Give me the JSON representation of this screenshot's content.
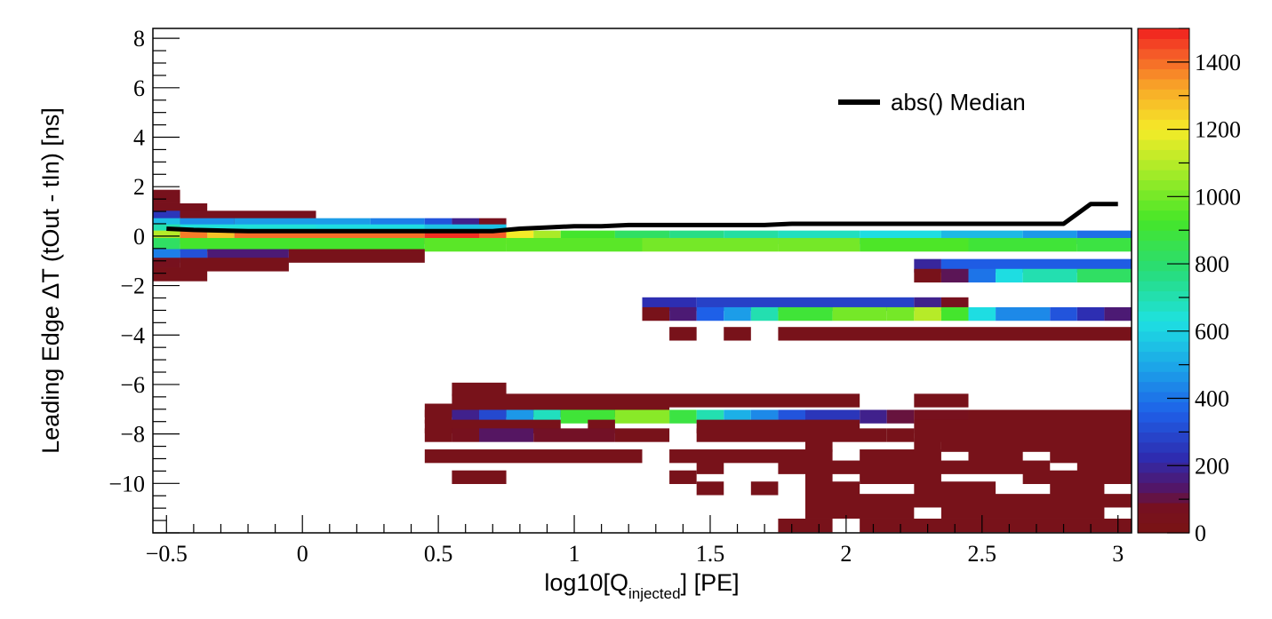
{
  "chart_data": {
    "type": "heatmap",
    "xlabel": {
      "prefix": "log10[Q",
      "subscript": "injected",
      "suffix": "] [PE]"
    },
    "ylabel": "Leading Edge ΔT (tOut - tIn) [ns]",
    "xlim": [
      -0.55,
      3.05
    ],
    "ylim": [
      -12.0,
      8.4
    ],
    "x_ticks": [
      -0.5,
      0,
      0.5,
      1,
      1.5,
      2,
      2.5,
      3
    ],
    "x_tick_labels": [
      "−0.5",
      "0",
      "0.5",
      "1",
      "1.5",
      "2",
      "2.5",
      "3"
    ],
    "y_ticks": [
      8,
      6,
      4,
      2,
      0,
      -2,
      -4,
      -6,
      -8,
      -10
    ],
    "y_tick_labels": [
      "8",
      "6",
      "4",
      "2",
      "0",
      "−2",
      "−4",
      "−6",
      "−8",
      "−10"
    ],
    "colorbar": {
      "min": 0,
      "max": 1500,
      "ticks": [
        0,
        200,
        400,
        600,
        800,
        1000,
        1200,
        1400
      ],
      "tick_labels": [
        "0",
        "200",
        "400",
        "600",
        "800",
        "1000",
        "1200",
        "1400"
      ]
    },
    "x_bin_width": 0.1,
    "y_bin_width": 0.55,
    "rows": [
      {
        "y": 1.6,
        "cells": [
          [
            -0.55,
            -0.45,
            50
          ]
        ]
      },
      {
        "y": 1.05,
        "cells": [
          [
            -0.55,
            -0.35,
            50
          ]
        ]
      },
      {
        "y": 0.75,
        "cells": [
          [
            -0.55,
            -0.45,
            250
          ],
          [
            -0.45,
            0.05,
            60
          ]
        ]
      },
      {
        "y": 0.45,
        "cells": [
          [
            -0.55,
            -0.45,
            550
          ],
          [
            -0.45,
            -0.25,
            450
          ],
          [
            -0.25,
            0.25,
            480
          ],
          [
            0.25,
            0.45,
            420
          ],
          [
            0.45,
            0.55,
            330
          ],
          [
            0.55,
            0.65,
            180
          ],
          [
            0.65,
            0.75,
            60
          ]
        ]
      },
      {
        "y": 0.2,
        "cells": [
          [
            -0.55,
            -0.45,
            700
          ],
          [
            -0.45,
            0.05,
            640
          ],
          [
            0.05,
            0.45,
            620
          ],
          [
            0.45,
            0.75,
            560
          ]
        ]
      },
      {
        "y": -0.05,
        "cells": [
          [
            -0.55,
            -0.45,
            1100
          ],
          [
            -0.45,
            -0.35,
            1380
          ],
          [
            -0.35,
            -0.25,
            1280
          ],
          [
            -0.25,
            0.45,
            1400
          ],
          [
            0.45,
            0.65,
            1480
          ],
          [
            0.65,
            0.75,
            1420
          ],
          [
            0.75,
            0.85,
            1200
          ],
          [
            0.85,
            0.95,
            1080
          ],
          [
            0.95,
            1.15,
            920
          ],
          [
            1.15,
            1.35,
            820
          ],
          [
            1.35,
            1.55,
            760
          ],
          [
            1.55,
            1.75,
            720
          ],
          [
            1.75,
            2.05,
            680
          ],
          [
            2.05,
            2.35,
            620
          ],
          [
            2.35,
            2.65,
            540
          ],
          [
            2.65,
            2.85,
            470
          ],
          [
            2.85,
            3.05,
            390
          ]
        ]
      },
      {
        "y": -0.35,
        "cells": [
          [
            -0.55,
            -0.45,
            820
          ],
          [
            -0.45,
            0.45,
            920
          ],
          [
            0.45,
            0.75,
            960
          ],
          [
            0.75,
            1.25,
            960
          ],
          [
            1.25,
            1.75,
            1000
          ],
          [
            1.75,
            2.05,
            1000
          ],
          [
            2.05,
            2.45,
            940
          ],
          [
            2.45,
            2.85,
            900
          ],
          [
            2.85,
            3.05,
            880
          ]
        ]
      },
      {
        "y": -0.8,
        "cells": [
          [
            -0.55,
            -0.45,
            420
          ],
          [
            -0.45,
            -0.35,
            320
          ],
          [
            -0.35,
            -0.05,
            150
          ],
          [
            -0.05,
            0.45,
            40
          ]
        ]
      },
      {
        "y": -1.15,
        "cells": [
          [
            -0.55,
            -0.45,
            60
          ],
          [
            -0.45,
            -0.05,
            40
          ]
        ]
      },
      {
        "y": -1.55,
        "cells": [
          [
            -0.55,
            -0.35,
            40
          ]
        ]
      },
      {
        "y": -1.2,
        "cells": [
          [
            2.25,
            2.35,
            200
          ],
          [
            2.35,
            3.05,
            350
          ]
        ]
      },
      {
        "y": -1.6,
        "cells": [
          [
            2.25,
            2.35,
            40
          ],
          [
            2.35,
            2.45,
            120
          ],
          [
            2.45,
            2.55,
            400
          ],
          [
            2.55,
            2.65,
            620
          ],
          [
            2.65,
            2.85,
            700
          ],
          [
            2.85,
            3.05,
            820
          ]
        ]
      },
      {
        "y": -2.75,
        "cells": [
          [
            1.25,
            1.45,
            230
          ],
          [
            1.45,
            2.25,
            280
          ],
          [
            2.25,
            2.35,
            180
          ],
          [
            2.35,
            2.45,
            60
          ]
        ]
      },
      {
        "y": -3.15,
        "cells": [
          [
            1.25,
            1.35,
            40
          ],
          [
            1.35,
            1.45,
            150
          ],
          [
            1.45,
            1.55,
            360
          ],
          [
            1.55,
            1.65,
            480
          ],
          [
            1.65,
            1.75,
            700
          ],
          [
            1.75,
            1.95,
            900
          ],
          [
            1.95,
            2.15,
            1000
          ],
          [
            2.15,
            2.25,
            1000
          ],
          [
            2.25,
            2.35,
            1100
          ],
          [
            2.35,
            2.45,
            920
          ],
          [
            2.45,
            2.55,
            620
          ],
          [
            2.55,
            2.75,
            440
          ],
          [
            2.75,
            2.85,
            330
          ],
          [
            2.85,
            2.95,
            230
          ],
          [
            2.95,
            3.05,
            150
          ]
        ]
      },
      {
        "y": -3.95,
        "cells": [
          [
            1.35,
            1.45,
            40
          ],
          [
            1.55,
            1.65,
            40
          ],
          [
            1.75,
            3.05,
            40
          ]
        ]
      },
      {
        "y": -6.2,
        "cells": [
          [
            0.55,
            0.75,
            40
          ]
        ]
      },
      {
        "y": -6.65,
        "cells": [
          [
            0.55,
            2.05,
            40
          ],
          [
            2.25,
            2.45,
            40
          ]
        ]
      },
      {
        "y": -7.05,
        "cells": [
          [
            0.45,
            0.65,
            40
          ],
          [
            0.65,
            1.35,
            40
          ]
        ]
      },
      {
        "y": -7.3,
        "cells": [
          [
            0.45,
            0.55,
            40
          ],
          [
            0.55,
            0.65,
            180
          ],
          [
            0.65,
            0.75,
            300
          ],
          [
            0.75,
            0.85,
            470
          ],
          [
            0.85,
            0.95,
            680
          ],
          [
            0.95,
            1.15,
            900
          ],
          [
            1.15,
            1.35,
            1030
          ],
          [
            1.35,
            1.45,
            880
          ],
          [
            1.45,
            1.55,
            700
          ],
          [
            1.55,
            1.65,
            520
          ],
          [
            1.65,
            1.75,
            440
          ],
          [
            1.75,
            1.85,
            330
          ],
          [
            1.85,
            2.05,
            250
          ],
          [
            2.05,
            2.15,
            180
          ],
          [
            2.15,
            2.25,
            100
          ],
          [
            2.25,
            2.45,
            60
          ],
          [
            2.45,
            3.05,
            40
          ]
        ]
      },
      {
        "y": -7.7,
        "cells": [
          [
            0.45,
            0.95,
            40
          ],
          [
            1.05,
            1.15,
            40
          ],
          [
            1.45,
            2.05,
            40
          ],
          [
            2.25,
            3.05,
            40
          ]
        ]
      },
      {
        "y": -8.05,
        "cells": [
          [
            0.45,
            0.55,
            40
          ],
          [
            0.55,
            0.65,
            60
          ],
          [
            0.65,
            0.85,
            130
          ],
          [
            0.85,
            1.15,
            80
          ],
          [
            1.15,
            1.35,
            40
          ],
          [
            1.45,
            2.15,
            40
          ],
          [
            2.15,
            2.25,
            40
          ],
          [
            2.25,
            3.05,
            40
          ]
        ]
      },
      {
        "y": -8.45,
        "cells": [
          [
            1.85,
            1.95,
            40
          ],
          [
            2.25,
            2.35,
            40
          ],
          [
            2.35,
            3.05,
            40
          ]
        ]
      },
      {
        "y": -8.9,
        "cells": [
          [
            0.45,
            1.25,
            40
          ],
          [
            1.35,
            1.95,
            40
          ],
          [
            2.05,
            2.35,
            40
          ],
          [
            2.45,
            2.65,
            40
          ],
          [
            2.75,
            3.05,
            40
          ]
        ]
      },
      {
        "y": -9.35,
        "cells": [
          [
            1.45,
            1.55,
            40
          ],
          [
            1.75,
            2.75,
            40
          ],
          [
            2.85,
            3.05,
            40
          ]
        ]
      },
      {
        "y": -9.75,
        "cells": [
          [
            0.55,
            0.75,
            40
          ],
          [
            1.35,
            1.45,
            40
          ],
          [
            1.85,
            1.95,
            40
          ],
          [
            2.05,
            2.35,
            40
          ],
          [
            2.65,
            3.05,
            40
          ]
        ]
      },
      {
        "y": -10.2,
        "cells": [
          [
            1.45,
            1.55,
            40
          ],
          [
            1.65,
            1.75,
            40
          ],
          [
            1.85,
            2.05,
            40
          ],
          [
            2.25,
            2.55,
            40
          ],
          [
            2.75,
            2.95,
            40
          ]
        ]
      },
      {
        "y": -10.7,
        "cells": [
          [
            1.85,
            3.05,
            40
          ]
        ]
      },
      {
        "y": -11.15,
        "cells": [
          [
            1.85,
            2.25,
            40
          ],
          [
            2.35,
            2.95,
            40
          ]
        ]
      },
      {
        "y": -11.7,
        "cells": [
          [
            1.75,
            1.95,
            40
          ],
          [
            2.05,
            3.05,
            40
          ]
        ]
      }
    ],
    "series": [
      {
        "name": "abs() Median",
        "x": [
          -0.5,
          -0.4,
          -0.2,
          0.0,
          0.2,
          0.4,
          0.6,
          0.7,
          0.8,
          0.9,
          1.0,
          1.1,
          1.2,
          1.4,
          1.6,
          1.7,
          1.8,
          2.0,
          2.2,
          2.4,
          2.6,
          2.8,
          2.9,
          3.0
        ],
        "y": [
          0.3,
          0.25,
          0.2,
          0.2,
          0.2,
          0.2,
          0.2,
          0.2,
          0.3,
          0.35,
          0.4,
          0.4,
          0.45,
          0.45,
          0.45,
          0.45,
          0.5,
          0.5,
          0.5,
          0.5,
          0.5,
          0.5,
          1.3,
          1.3
        ]
      }
    ],
    "legend": {
      "position": "top-right",
      "label": "abs() Median"
    }
  }
}
